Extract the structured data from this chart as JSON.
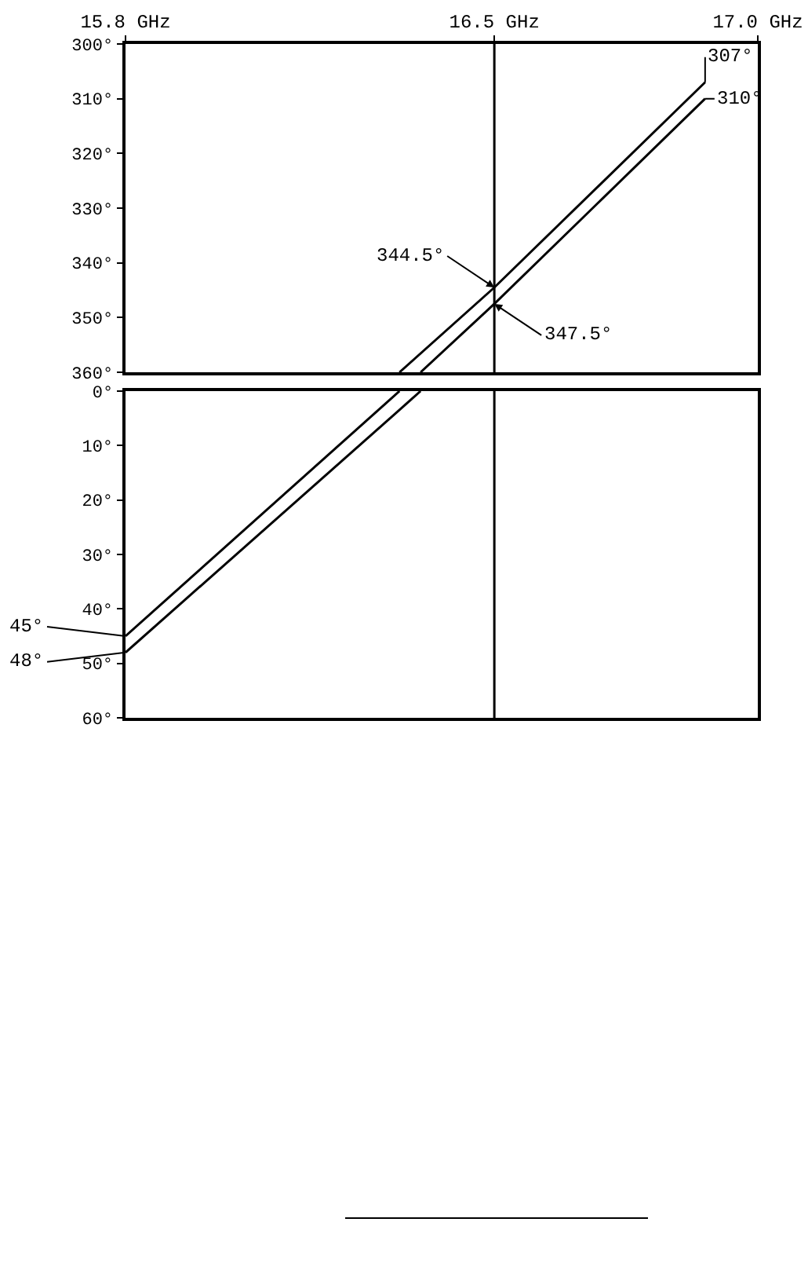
{
  "chart_data": [
    {
      "type": "line",
      "series": [
        {
          "color": "#000000",
          "x": [
            16.32,
            16.5,
            16.9
          ],
          "values": [
            360,
            344.5,
            307
          ]
        },
        {
          "color": "#000000",
          "x": [
            16.36,
            16.5,
            16.9
          ],
          "values": [
            360,
            347.5,
            310
          ]
        }
      ],
      "xlim": [
        15.8,
        17.0
      ],
      "xticks": [
        {
          "value": 15.8,
          "label": "15.8 GHz"
        },
        {
          "value": 16.5,
          "label": "16.5 GHz"
        },
        {
          "value": 17.0,
          "label": "17.0 GHz"
        }
      ],
      "ylim": [
        360,
        300
      ],
      "yticks": [
        {
          "value": 300,
          "label": "300°"
        },
        {
          "value": 310,
          "label": "310°"
        },
        {
          "value": 320,
          "label": "320°"
        },
        {
          "value": 330,
          "label": "330°"
        },
        {
          "value": 340,
          "label": "340°"
        },
        {
          "value": 350,
          "label": "350°"
        },
        {
          "value": 360,
          "label": "360°"
        }
      ],
      "ref_lines": [
        {
          "axis": "x",
          "value": 16.5
        }
      ],
      "annotations": [
        {
          "text": "344.5°",
          "x": 16.5,
          "y": 344.5
        },
        {
          "text": "347.5°",
          "x": 16.5,
          "y": 347.5
        },
        {
          "text": "307°",
          "x": 16.9,
          "y": 307
        },
        {
          "text": "310°",
          "x": 16.9,
          "y": 310
        }
      ],
      "grid": false,
      "marker": "none",
      "line_style": "solid"
    },
    {
      "type": "line",
      "series": [
        {
          "color": "#000000",
          "x": [
            15.8,
            16.32
          ],
          "values": [
            45,
            0
          ]
        },
        {
          "color": "#000000",
          "x": [
            15.8,
            16.36
          ],
          "values": [
            48,
            0
          ]
        }
      ],
      "xlim": [
        15.8,
        17.0
      ],
      "ylim": [
        60,
        0
      ],
      "yticks": [
        {
          "value": 0,
          "label": "0°"
        },
        {
          "value": 10,
          "label": "10°"
        },
        {
          "value": 20,
          "label": "20°"
        },
        {
          "value": 30,
          "label": "30°"
        },
        {
          "value": 40,
          "label": "40°"
        },
        {
          "value": 50,
          "label": "50°"
        },
        {
          "value": 60,
          "label": "60°"
        }
      ],
      "ref_lines": [
        {
          "axis": "x",
          "value": 16.5
        }
      ],
      "annotations": [
        {
          "text": "45°",
          "x": 15.8,
          "y": 45
        },
        {
          "text": "48°",
          "x": 15.8,
          "y": 48
        }
      ],
      "tick_labels": "y",
      "grid": false,
      "marker": "none",
      "line_style": "solid"
    }
  ]
}
